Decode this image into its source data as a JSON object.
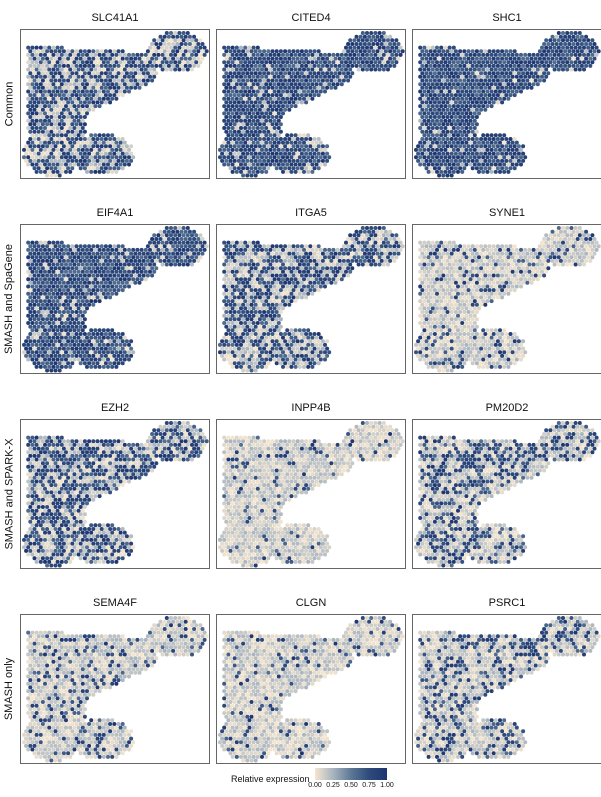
{
  "chart_data": {
    "type": "heatmap",
    "rows": [
      {
        "label": "Common",
        "genes": [
          "SLC41A1",
          "CITED4",
          "SHC1"
        ],
        "levels": [
          0.6,
          0.88,
          0.92
        ]
      },
      {
        "label": "SMASH and SpaGene",
        "genes": [
          "EIF4A1",
          "ITGA5",
          "SYNE1"
        ],
        "levels": [
          0.88,
          0.55,
          0.18
        ]
      },
      {
        "label": "SMASH and SPARK-X",
        "genes": [
          "EZH2",
          "INPP4B",
          "PM20D2"
        ],
        "levels": [
          0.55,
          0.08,
          0.4
        ]
      },
      {
        "label": "SMASH only",
        "genes": [
          "SEMA4F",
          "CLGN",
          "PSRC1"
        ],
        "levels": [
          0.22,
          0.12,
          0.28
        ]
      }
    ],
    "legend": {
      "title": "Relative expression",
      "ticks": [
        "0.00",
        "0.25",
        "0.50",
        "0.75",
        "1.00"
      ],
      "colors": [
        "#f5e6cf",
        "#a8b4c0",
        "#5d7896",
        "#2e4b7c",
        "#1f3670"
      ]
    }
  }
}
